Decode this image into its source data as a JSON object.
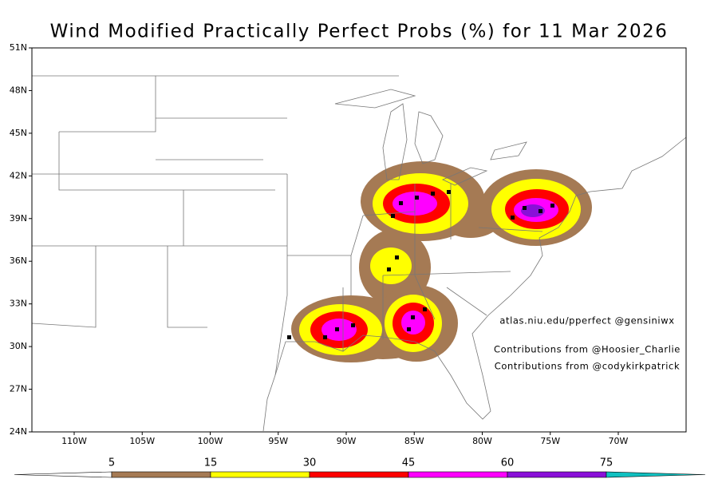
{
  "title": "Wind Modified Practically Perfect Probs (%) for 11 Mar 2026",
  "lat_labels": [
    "51N",
    "48N",
    "45N",
    "42N",
    "39N",
    "36N",
    "33N",
    "30N",
    "27N",
    "24N"
  ],
  "lon_labels": [
    "110W",
    "105W",
    "100W",
    "95W",
    "90W",
    "85W",
    "80W",
    "75W",
    "70W"
  ],
  "annotations": [
    "atlas.niu.edu/pperfect @gensiniwx",
    "Contributions from @Hoosier_Charlie",
    "Contributions from @codykirkpatrick"
  ],
  "colorbar": {
    "levels": [
      5,
      15,
      30,
      45,
      60,
      75
    ],
    "colors": [
      "#ffffff",
      "#a57a54",
      "#ffff00",
      "#ff0000",
      "#ff00ff",
      "#8a10d8",
      "#10c0c0"
    ]
  }
}
